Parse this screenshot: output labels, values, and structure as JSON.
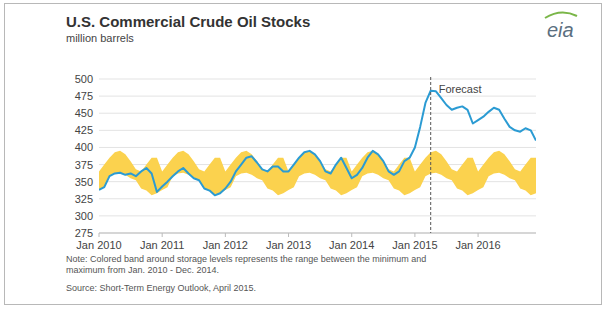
{
  "chart_data": {
    "type": "line",
    "title": "U.S. Commercial Crude Oil Stocks",
    "subtitle": "million barrels",
    "logo": "eia",
    "categories": [
      "Jan 2010",
      null,
      null,
      null,
      null,
      null,
      null,
      null,
      null,
      null,
      null,
      null,
      "Jan 2011",
      null,
      null,
      null,
      null,
      null,
      null,
      null,
      null,
      null,
      null,
      null,
      "Jan 2012",
      null,
      null,
      null,
      null,
      null,
      null,
      null,
      null,
      null,
      null,
      null,
      "Jan 2013",
      null,
      null,
      null,
      null,
      null,
      null,
      null,
      null,
      null,
      null,
      null,
      "Jan 2014",
      null,
      null,
      null,
      null,
      null,
      null,
      null,
      null,
      null,
      null,
      null,
      "Jan 2015",
      null,
      null,
      null,
      null,
      null,
      null,
      null,
      null,
      null,
      null,
      null,
      "Jan 2016",
      null,
      null,
      null,
      null,
      null,
      null,
      null,
      null,
      null,
      null,
      null
    ],
    "series": [
      {
        "color": "#2b9bd3",
        "values": [
          338,
          342,
          358,
          362,
          363,
          360,
          362,
          358,
          365,
          370,
          362,
          335,
          343,
          350,
          358,
          365,
          370,
          362,
          355,
          352,
          340,
          337,
          330,
          333,
          340,
          350,
          365,
          375,
          385,
          387,
          378,
          368,
          365,
          372,
          372,
          365,
          365,
          375,
          385,
          393,
          395,
          390,
          380,
          365,
          362,
          375,
          385,
          370,
          355,
          360,
          370,
          385,
          395,
          390,
          380,
          365,
          360,
          365,
          380,
          385,
          400,
          430,
          465,
          483,
          482,
          472,
          462,
          455,
          458,
          460,
          455,
          435,
          440,
          445,
          452,
          458,
          455,
          442,
          430,
          425,
          423,
          428,
          425,
          410
        ]
      }
    ],
    "band": {
      "color": "#fbd24e",
      "low": [
        338,
        342,
        358,
        362,
        363,
        360,
        355,
        352,
        340,
        337,
        330,
        333,
        338,
        342,
        358,
        362,
        363,
        360,
        355,
        352,
        340,
        337,
        330,
        333,
        338,
        342,
        358,
        362,
        363,
        360,
        355,
        352,
        340,
        337,
        330,
        333,
        338,
        342,
        358,
        362,
        363,
        360,
        355,
        352,
        340,
        337,
        330,
        333,
        338,
        342,
        358,
        362,
        363,
        360,
        355,
        352,
        340,
        337,
        330,
        333,
        338,
        342,
        358,
        362,
        363,
        360,
        355,
        352,
        340,
        337,
        330,
        333,
        338,
        342,
        358,
        362,
        363,
        360,
        355,
        352,
        340,
        337,
        330,
        333
      ],
      "high": [
        365,
        375,
        385,
        393,
        395,
        390,
        380,
        368,
        365,
        375,
        385,
        385,
        365,
        375,
        385,
        393,
        395,
        390,
        380,
        368,
        365,
        375,
        385,
        385,
        365,
        375,
        385,
        393,
        395,
        390,
        380,
        368,
        365,
        375,
        385,
        385,
        365,
        375,
        385,
        393,
        395,
        390,
        380,
        368,
        365,
        375,
        385,
        385,
        365,
        375,
        385,
        393,
        395,
        390,
        380,
        368,
        365,
        375,
        385,
        385,
        365,
        375,
        385,
        393,
        395,
        390,
        380,
        368,
        365,
        375,
        385,
        385,
        365,
        375,
        385,
        393,
        395,
        390,
        380,
        368,
        365,
        375,
        385,
        385
      ]
    },
    "annotations": [
      {
        "text": "Forecast",
        "index": 63
      }
    ],
    "ylim": [
      275,
      500
    ],
    "yticks": [
      275,
      300,
      325,
      350,
      375,
      400,
      425,
      450,
      475,
      500
    ],
    "grid": true,
    "notes": [
      "Note: Colored band around storage levels represents the range between the minimum and",
      "maximum from Jan. 2010 - Dec. 2014."
    ],
    "source": "Source: Short-Term Energy Outlook, April 2015."
  }
}
